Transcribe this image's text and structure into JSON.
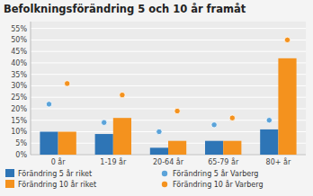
{
  "chart_data": {
    "type": "bar",
    "title": "Befolkningsförändring 5 och 10 år framåt",
    "categories": [
      "0 år",
      "1-19 år",
      "20-64 år",
      "65-79 år",
      "80+ år"
    ],
    "series": [
      {
        "name": "Förändring 5 år riket",
        "type": "bar",
        "color": "#2E75B6",
        "values": [
          10,
          9,
          3,
          6,
          11
        ]
      },
      {
        "name": "Förändring 10 år riket",
        "type": "bar",
        "color": "#F4921E",
        "values": [
          10,
          16,
          6,
          6,
          42
        ]
      },
      {
        "name": "Förändring 5 år Varberg",
        "type": "scatter",
        "color": "#5BA3D9",
        "marker": "circle",
        "values": [
          22,
          14,
          10,
          13,
          15
        ]
      },
      {
        "name": "Förändring 10 år Varberg",
        "type": "scatter",
        "color": "#F4921E",
        "marker": "circle",
        "values": [
          31,
          26,
          19,
          16,
          50
        ]
      }
    ],
    "ylim": [
      0,
      58
    ],
    "yticks": [
      {
        "value": 0,
        "label": "0%"
      },
      {
        "value": 5,
        "label": "5%"
      },
      {
        "value": 10,
        "label": "10%"
      },
      {
        "value": 15,
        "label": "15%"
      },
      {
        "value": 20,
        "label": "20%"
      },
      {
        "value": 25,
        "label": "25%"
      },
      {
        "value": 30,
        "label": "30%"
      },
      {
        "value": 35,
        "label": "35%"
      },
      {
        "value": 40,
        "label": "40%"
      },
      {
        "value": 45,
        "label": "45%"
      },
      {
        "value": 50,
        "label": "50%"
      },
      {
        "value": 55,
        "label": "55%"
      }
    ],
    "grid": true,
    "legend": "bottom"
  }
}
